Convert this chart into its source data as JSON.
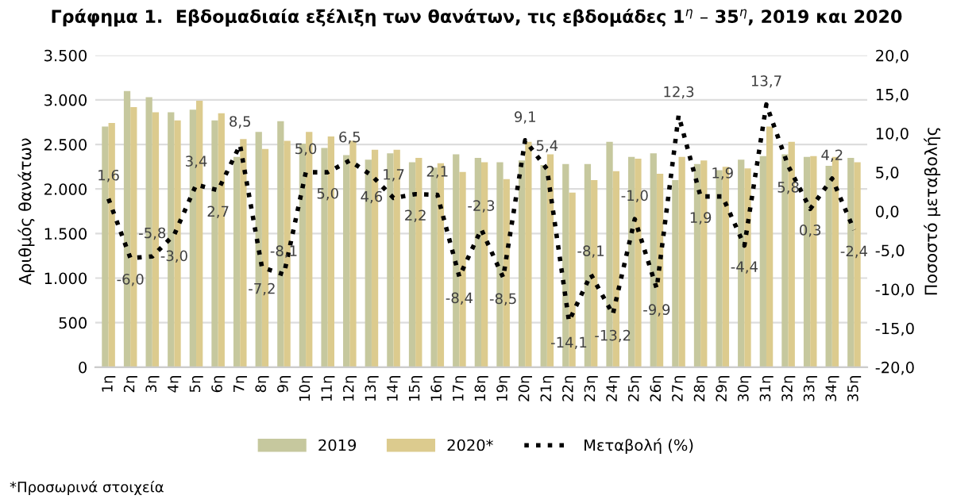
{
  "chart_data": {
    "type": "bar",
    "title": "Γράφημα 1.  Εβδομαδιαία εξέλιξη των θανάτων, τις εβδομάδες 1$^{η}$ – 35$^{η}$, 2019 και 2020",
    "ylabel": "Αριθμός θανάτων",
    "y2label": "Ποσοστό μεταβολής",
    "annotations": [
      "*Προσωρινά στοιχεία"
    ],
    "categories": [
      "1η",
      "2η",
      "3η",
      "4η",
      "5η",
      "6η",
      "7η",
      "8η",
      "9η",
      "10η",
      "11η",
      "12η",
      "13η",
      "14η",
      "15η",
      "16η",
      "17η",
      "18η",
      "19η",
      "20η",
      "21η",
      "22η",
      "23η",
      "24η",
      "25η",
      "26η",
      "27η",
      "28η",
      "29η",
      "30η",
      "31η",
      "32η",
      "33η",
      "34η",
      "35η"
    ],
    "series": [
      {
        "name": "2019",
        "color": "#c6c89e",
        "values": [
          2700,
          3100,
          3030,
          2860,
          2890,
          2770,
          2360,
          2640,
          2760,
          2510,
          2460,
          2380,
          2330,
          2400,
          2300,
          2240,
          2390,
          2350,
          2300,
          2320,
          2270,
          2280,
          2280,
          2530,
          2360,
          2400,
          2100,
          2280,
          2210,
          2330,
          2370,
          2390,
          2360,
          2260,
          2350
        ]
      },
      {
        "name": "2020*",
        "color": "#dccb8e",
        "values": [
          2740,
          2920,
          2860,
          2770,
          2990,
          2850,
          2560,
          2450,
          2540,
          2640,
          2590,
          2540,
          2440,
          2440,
          2350,
          2290,
          2190,
          2300,
          2110,
          2530,
          2390,
          1960,
          2100,
          2200,
          2340,
          2170,
          2360,
          2320,
          2250,
          2230,
          2700,
          2530,
          2370,
          2360,
          2300
        ]
      },
      {
        "name": "Μεταβολή (%)",
        "color": "#000000",
        "type": "line",
        "axis": "y2",
        "line_style": "dotted",
        "value_labels": [
          "1,6",
          "-6,0",
          "-5,8",
          "-3,0",
          "3,4",
          "2,7",
          "8,5",
          "-7,2",
          "-8,1",
          "5,0",
          "5,0",
          "6,5",
          "4,6",
          "1,7",
          "2,2",
          "2,1",
          "-8,4",
          "-2,3",
          "-8,5",
          "9,1",
          "5,4",
          "-14,1",
          "-8,1",
          "-13,2",
          "-1,0",
          "-9,9",
          "12,3",
          "1,9",
          "1,9",
          "-4,4",
          "13,7",
          "5,8",
          "0,3",
          "4,2",
          "-2,4"
        ],
        "values": [
          1.6,
          -6.0,
          -5.8,
          -3.0,
          3.4,
          2.7,
          8.5,
          -7.2,
          -8.1,
          5.0,
          5.0,
          6.5,
          4.6,
          1.7,
          2.2,
          2.1,
          -8.4,
          -2.3,
          -8.5,
          9.1,
          5.4,
          -14.1,
          -8.1,
          -13.2,
          -1.0,
          -9.9,
          12.3,
          1.9,
          1.9,
          -4.4,
          13.7,
          5.8,
          0.3,
          4.2,
          -2.4
        ]
      }
    ],
    "ylim": [
      0,
      3500
    ],
    "yticks": [
      {
        "value": 0,
        "label": "0"
      },
      {
        "value": 500,
        "label": "500"
      },
      {
        "value": 1000,
        "label": "1.000"
      },
      {
        "value": 1500,
        "label": "1.500"
      },
      {
        "value": 2000,
        "label": "2.000"
      },
      {
        "value": 2500,
        "label": "2.500"
      },
      {
        "value": 3000,
        "label": "3.000"
      },
      {
        "value": 3500,
        "label": "3.500"
      }
    ],
    "y2lim": [
      -20,
      20
    ],
    "y2ticks": [
      {
        "value": -20,
        "label": "-20,0"
      },
      {
        "value": -15,
        "label": "-15,0"
      },
      {
        "value": -10,
        "label": "-10,0"
      },
      {
        "value": -5,
        "label": "-5,0"
      },
      {
        "value": 0,
        "label": "0,0"
      },
      {
        "value": 5,
        "label": "5,0"
      },
      {
        "value": 10,
        "label": "10,0"
      },
      {
        "value": 15,
        "label": "15,0"
      },
      {
        "value": 20,
        "label": "20,0"
      }
    ],
    "grid": "y",
    "legend": "bottom"
  }
}
